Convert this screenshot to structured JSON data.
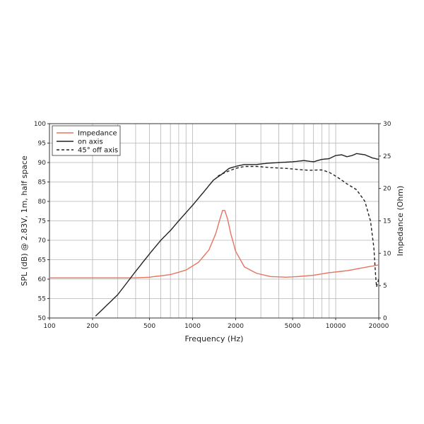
{
  "chart_data": {
    "type": "line",
    "xlabel": "Frequency (Hz)",
    "ylabel_left": "SPL (dB) @ 2.83V, 1m, half space",
    "ylabel_right": "Impedance (Ohm)",
    "x_scale": "log",
    "xlim": [
      100,
      20000
    ],
    "ylim_left": [
      50,
      100
    ],
    "ylim_right": [
      0,
      30
    ],
    "x_tick_labels": [
      "100",
      "200",
      "500",
      "1000",
      "2000",
      "5000",
      "10000",
      "20000"
    ],
    "x_ticks": [
      100,
      200,
      500,
      1000,
      2000,
      5000,
      10000,
      20000
    ],
    "y_left_ticks": [
      50,
      55,
      60,
      65,
      70,
      75,
      80,
      85,
      90,
      95,
      100
    ],
    "y_right_ticks": [
      0,
      5,
      10,
      15,
      20,
      25,
      30
    ],
    "grid": true,
    "legend_position": "top-left",
    "series": [
      {
        "name": "Impedance",
        "axis": "right",
        "color": "#e8735f",
        "style": "solid",
        "x": [
          100,
          200,
          300,
          400,
          500,
          700,
          900,
          1100,
          1300,
          1450,
          1550,
          1620,
          1680,
          1750,
          1850,
          2000,
          2300,
          2800,
          3500,
          4500,
          5500,
          7000,
          9000,
          12000,
          15000,
          20000
        ],
        "y": [
          6.2,
          6.2,
          6.2,
          6.2,
          6.3,
          6.7,
          7.4,
          8.6,
          10.5,
          13.0,
          15.2,
          16.6,
          16.6,
          15.4,
          13.0,
          10.3,
          7.9,
          6.9,
          6.4,
          6.3,
          6.4,
          6.6,
          7.0,
          7.3,
          7.7,
          8.2
        ]
      },
      {
        "name": "on axis",
        "axis": "left",
        "color": "#222222",
        "style": "solid",
        "x": [
          210,
          300,
          400,
          500,
          600,
          700,
          800,
          1000,
          1200,
          1400,
          1600,
          1800,
          2000,
          2300,
          2800,
          3300,
          4000,
          5000,
          6000,
          7000,
          8000,
          9000,
          10000,
          11000,
          12000,
          13000,
          14000,
          16000,
          18000,
          20000
        ],
        "y": [
          50.5,
          56,
          62,
          66.5,
          70,
          72.5,
          75,
          79,
          82.5,
          85.5,
          87,
          88.5,
          89,
          89.5,
          89.5,
          89.8,
          90,
          90.2,
          90.5,
          90.2,
          90.8,
          91,
          91.8,
          92,
          91.5,
          91.8,
          92.3,
          92,
          91.2,
          90.8
        ]
      },
      {
        "name": "45° off axis",
        "axis": "left",
        "color": "#222222",
        "style": "dashed",
        "x": [
          1500,
          1700,
          2000,
          2300,
          2800,
          3500,
          4500,
          5500,
          6500,
          8000,
          9000,
          10000,
          11000,
          12000,
          14000,
          16000,
          17500,
          18500,
          19000,
          19300,
          19600,
          20000
        ],
        "y": [
          86.5,
          87.5,
          88.5,
          89,
          89,
          88.7,
          88.5,
          88.2,
          88,
          88.1,
          87.5,
          86.5,
          85.5,
          84.5,
          83,
          80,
          75,
          68,
          61,
          58,
          59,
          60
        ]
      }
    ]
  }
}
